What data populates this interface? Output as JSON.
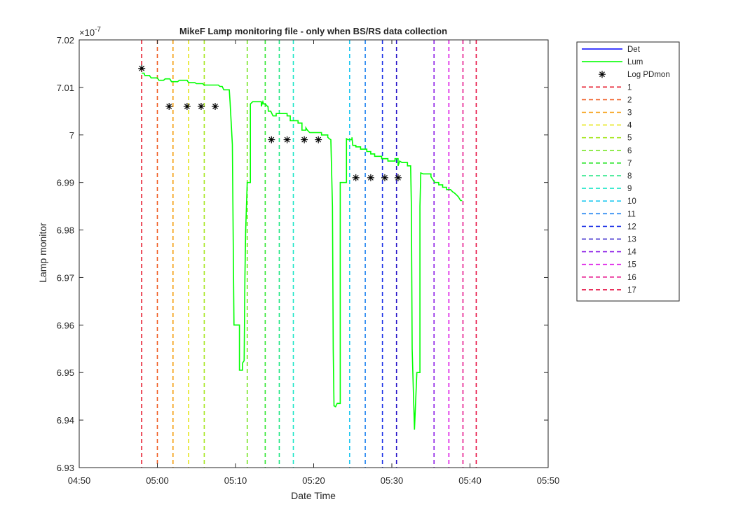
{
  "chart_data": {
    "type": "line",
    "title": "MikeF Lamp monitoring file - only when BS/RS data collection",
    "xlabel": "Date Time",
    "ylabel": "Lamp monitor",
    "exponent_label": "×10",
    "exponent_power": "-7",
    "x_unit": "minutes after 04:50",
    "xlim": [
      0,
      60
    ],
    "ylim": [
      6.93,
      7.02
    ],
    "x_ticks": [
      0,
      10,
      20,
      30,
      40,
      50,
      60
    ],
    "x_tick_labels": [
      "04:50",
      "05:00",
      "05:10",
      "05:20",
      "05:30",
      "05:40",
      "05:50"
    ],
    "y_ticks": [
      6.93,
      6.94,
      6.95,
      6.96,
      6.97,
      6.98,
      6.99,
      7.0,
      7.01,
      7.02
    ],
    "y_tick_labels": [
      "6.93",
      "6.94",
      "6.95",
      "6.96",
      "6.97",
      "6.98",
      "6.99",
      "7",
      "7.01",
      "7.02"
    ],
    "grid": false,
    "legend_position": "outside-top-right",
    "series": [
      {
        "name": "Det",
        "color": "#0000ff",
        "style": "line",
        "x": [],
        "y": []
      },
      {
        "name": "Lum",
        "color": "#00ff00",
        "style": "line",
        "x": [
          8.0,
          8.3,
          8.4,
          9.0,
          9.2,
          10.0,
          10.2,
          10.8,
          11.0,
          11.6,
          11.8,
          12.6,
          12.8,
          13.8,
          14.0,
          14.8,
          15.0,
          15.8,
          16.0,
          17.8,
          18.0,
          18.3,
          18.5,
          19.2,
          19.3,
          19.6,
          19.8,
          20.5,
          20.9,
          21.1,
          21.2,
          21.3,
          21.5,
          21.9,
          22.2,
          22.8,
          23.3,
          23.5,
          23.6,
          23.8,
          24.1,
          24.15,
          24.2,
          24.5,
          24.8,
          25.2,
          26.6,
          27.0,
          27.3,
          27.5,
          28.0,
          28.5,
          29.0,
          29.2,
          29.5,
          30.6,
          31.0,
          31.8,
          32.0,
          32.2,
          32.4,
          32.5,
          32.6,
          32.8,
          33.0,
          33.4,
          34.2,
          34.4,
          34.9,
          35.0,
          35.4,
          36.0,
          36.8,
          37.3,
          37.8,
          38.7,
          39.5,
          40.4,
          40.8,
          41.0,
          41.3,
          42.0,
          42.4,
          42.5,
          42.6,
          42.9,
          43.2,
          43.6,
          43.7,
          44.0,
          45.0,
          45.3,
          45.5,
          46.0,
          46.5,
          47.0,
          47.5,
          47.8,
          48.0,
          48.2,
          48.5,
          48.8,
          49.0
        ],
        "y": [
          7.013,
          7.013,
          7.0125,
          7.0125,
          7.012,
          7.012,
          7.0115,
          7.0115,
          7.0118,
          7.0118,
          7.0112,
          7.0112,
          7.0115,
          7.0115,
          7.011,
          7.011,
          7.0108,
          7.0108,
          7.0105,
          7.0105,
          7.0102,
          7.0102,
          7.0095,
          7.0095,
          7.007,
          6.998,
          6.96,
          6.9505,
          6.952,
          6.9525,
          6.97,
          6.98,
          6.99,
          7.0065,
          7.007,
          7.007,
          7.006,
          7.007,
          7.0065,
          7.0065,
          7.006,
          7.006,
          7.005,
          7.005,
          7.004,
          7.0045,
          7.004,
          7.003,
          7.003,
          7.003,
          7.0025,
          7.001,
          7.0015,
          7.001,
          7.0005,
          7.0005,
          7.0,
          6.9995,
          6.9992,
          6.999,
          6.985,
          6.955,
          6.943,
          6.9428,
          6.9435,
          6.99,
          6.9992,
          6.999,
          6.9995,
          6.9978,
          6.9975,
          6.997,
          6.9965,
          6.996,
          6.9955,
          6.995,
          6.9945,
          6.995,
          6.9935,
          6.9945,
          6.9942,
          6.9935,
          6.9935,
          6.985,
          6.955,
          6.938,
          6.95,
          6.985,
          6.992,
          6.9918,
          6.9912,
          6.9905,
          6.99,
          6.9895,
          6.989,
          6.9885,
          6.9885,
          6.988,
          6.9878,
          6.9875,
          6.987,
          6.9862,
          6.9862
        ]
      },
      {
        "name": "Log PDmon",
        "color": "#000000",
        "style": "marker-asterisk",
        "x": [
          8.0,
          11.5,
          13.8,
          15.6,
          17.4,
          24.6,
          26.6,
          28.8,
          30.6,
          35.4,
          37.3,
          39.1,
          40.8
        ],
        "y": [
          7.014,
          7.006,
          7.006,
          7.006,
          7.006,
          6.999,
          6.999,
          6.999,
          6.999,
          6.991,
          6.991,
          6.991,
          6.991
        ]
      }
    ],
    "vertical_lines": [
      {
        "name": "1",
        "x": 8.0,
        "color": "#e6192b"
      },
      {
        "name": "2",
        "x": 10.0,
        "color": "#f05a1e"
      },
      {
        "name": "3",
        "x": 12.0,
        "color": "#f5a014"
      },
      {
        "name": "4",
        "x": 14.0,
        "color": "#e6e61e"
      },
      {
        "name": "5",
        "x": 16.0,
        "color": "#a5e61e"
      },
      {
        "name": "6",
        "x": 21.5,
        "color": "#78e628"
      },
      {
        "name": "7",
        "x": 23.8,
        "color": "#32e632"
      },
      {
        "name": "8",
        "x": 25.6,
        "color": "#1ee682"
      },
      {
        "name": "9",
        "x": 27.4,
        "color": "#1ee6c8"
      },
      {
        "name": "10",
        "x": 34.6,
        "color": "#1ec8f0"
      },
      {
        "name": "11",
        "x": 36.6,
        "color": "#1e82f0"
      },
      {
        "name": "12",
        "x": 38.8,
        "color": "#1e32e6"
      },
      {
        "name": "13",
        "x": 40.6,
        "color": "#2814c8"
      },
      {
        "name": "14",
        "x": 45.4,
        "color": "#8c1ee6"
      },
      {
        "name": "15",
        "x": 47.3,
        "color": "#dc14e6"
      },
      {
        "name": "16",
        "x": 49.1,
        "color": "#e6148c"
      },
      {
        "name": "17",
        "x": 50.8,
        "color": "#e61446"
      }
    ]
  }
}
